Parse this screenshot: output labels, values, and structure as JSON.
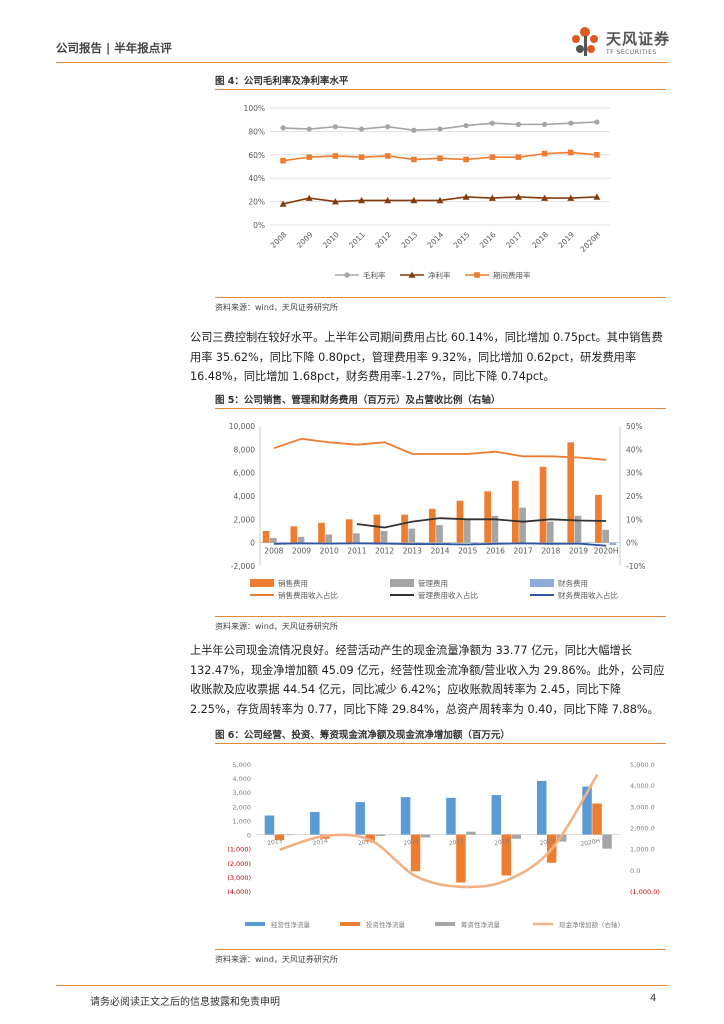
{
  "header": {
    "left": "公司报告 | 半年报点评"
  },
  "logo": {
    "cn": "天风证券",
    "en": "TF SECURITIES",
    "brand_color": "#e05a1f"
  },
  "colors": {
    "accent": "#e58a3c",
    "orange": "#ed7d31",
    "gray": "#a5a5a5",
    "blue": "#5b9bd5",
    "brown": "#843c0c",
    "dark": "#333333",
    "navy": "#2f55a4"
  },
  "fig4": {
    "title": "图 4：公司毛利率及净利率水平",
    "source": "资料来源：wind，天风证券研究所"
  },
  "para1": "公司三费控制在较好水平。上半年公司期间费用占比 60.14%，同比增加 0.75pct。其中销售费用率 35.62%，同比下降 0.80pct，管理费用率 9.32%，同比增加 0.62pct，研发费用率 16.48%，同比增加 1.68pct，财务费用率-1.27%，同比下降 0.74pct。",
  "fig5": {
    "title": "图 5：公司销售、管理和财务费用（百万元）及占营收比例（右轴）",
    "source": "资料来源：wind，天风证券研究所"
  },
  "para2": "上半年公司现金流情况良好。经营活动产生的现金流量净额为 33.77 亿元，同比大幅增长 132.47%，现金净增加额 45.09 亿元，经营性现金流净额/营业收入为 29.86%。此外，公司应收账款及应收票据 44.54 亿元，同比减少 6.42%；应收账款周转率为 2.45，同比下降 2.25%，存货周转率为 0.77，同比下降 29.84%，总资产周转率为 0.40，同比下降 7.88%。",
  "fig6": {
    "title": "图 6：公司经营、投资、筹资现金流净额及现金流净增加额（百万元）",
    "source": "资料来源：wind，天风证券研究所"
  },
  "footer": {
    "disclaimer": "请务必阅读正文之后的信息披露和免责申明",
    "page": "4"
  },
  "chart_data": [
    {
      "id": "fig4",
      "type": "line",
      "categories": [
        "2008",
        "2009",
        "2010",
        "2011",
        "2012",
        "2013",
        "2014",
        "2015",
        "2016",
        "2017",
        "2018",
        "2019",
        "2020H"
      ],
      "ylim": [
        0,
        100
      ],
      "yticks": [
        "0%",
        "20%",
        "40%",
        "60%",
        "80%",
        "100%"
      ],
      "series": [
        {
          "name": "毛利率",
          "marker": "circle",
          "color": "#a5a5a5",
          "values": [
            83,
            82,
            84,
            82,
            84,
            81,
            82,
            85,
            87,
            86,
            86,
            87,
            88
          ]
        },
        {
          "name": "净利率",
          "marker": "triangle",
          "color": "#843c0c",
          "values": [
            18,
            23,
            20,
            21,
            21,
            21,
            21,
            24,
            23,
            24,
            23,
            23,
            24
          ]
        },
        {
          "name": "期间费用率",
          "marker": "square",
          "color": "#ed7d31",
          "values": [
            55,
            58,
            59,
            58,
            59,
            56,
            57,
            56,
            58,
            58,
            61,
            62,
            60
          ]
        }
      ]
    },
    {
      "id": "fig5",
      "type": "bar",
      "categories": [
        "2008",
        "2009",
        "2010",
        "2011",
        "2012",
        "2013",
        "2014",
        "2015",
        "2016",
        "2017",
        "2018",
        "2019",
        "2020H"
      ],
      "ylim": [
        -2000,
        10000
      ],
      "yticks": [
        "-2,000",
        "0",
        "2,000",
        "4,000",
        "6,000",
        "8,000",
        "10,000"
      ],
      "y2lim": [
        -10,
        50
      ],
      "y2ticks": [
        "-10%",
        "0%",
        "10%",
        "20%",
        "30%",
        "40%",
        "50%"
      ],
      "bar_series": [
        {
          "name": "销售费用",
          "color": "#ed7d31",
          "values": [
            1000,
            1400,
            1700,
            2000,
            2400,
            2400,
            2900,
            3600,
            4400,
            5300,
            6500,
            8600,
            4100
          ]
        },
        {
          "name": "管理费用",
          "color": "#a5a5a5",
          "values": [
            400,
            500,
            700,
            800,
            1000,
            1200,
            1500,
            2000,
            2300,
            3000,
            1800,
            2300,
            1100
          ]
        },
        {
          "name": "财务费用",
          "color": "#8faadc",
          "values": [
            0,
            -50,
            -30,
            -20,
            -50,
            -80,
            -100,
            -150,
            -100,
            -80,
            -120,
            -100,
            -200
          ]
        }
      ],
      "line_series": [
        {
          "name": "销售费用收入占比",
          "color": "#ed7d31",
          "values": [
            40.5,
            44.5,
            43,
            42,
            43,
            38,
            38,
            38,
            39,
            37,
            37,
            36.5,
            35.5
          ]
        },
        {
          "name": "管理费用收入占比",
          "color": "#333333",
          "values": [
            null,
            null,
            null,
            8,
            6.5,
            9,
            10.5,
            10,
            10,
            9,
            10,
            9.5,
            9.3
          ]
        },
        {
          "name": "财务费用收入占比",
          "color": "#2f55a4",
          "values": [
            -0.5,
            -0.3,
            -0.4,
            -0.3,
            -0.4,
            -0.6,
            -0.6,
            -0.8,
            -0.5,
            -0.3,
            -0.5,
            -0.4,
            -1.3
          ]
        }
      ]
    },
    {
      "id": "fig6",
      "type": "bar",
      "categories": [
        "2013",
        "2014",
        "2015",
        "2016",
        "2017",
        "2018",
        "2019",
        "2020H"
      ],
      "ylim": [
        -4000,
        5000
      ],
      "yticks": [
        "(4,000)",
        "(3,000)",
        "(2,000)",
        "(1,000)",
        "0",
        "1,000",
        "2,000",
        "3,000",
        "4,000",
        "5,000"
      ],
      "y2lim": [
        -1000,
        5000
      ],
      "y2ticks": [
        "(1,000.0)",
        "0.0",
        "1,000.0",
        "2,000.0",
        "3,000.0",
        "4,000.0",
        "5,000.0"
      ],
      "bar_series": [
        {
          "name": "经营性净流量",
          "color": "#5b9bd5",
          "values": [
            1350,
            1600,
            2300,
            2650,
            2600,
            2800,
            3800,
            3400
          ]
        },
        {
          "name": "投资性净流量",
          "color": "#ed7d31",
          "values": [
            -400,
            -300,
            -500,
            -2600,
            -3400,
            -2900,
            -2000,
            2200
          ]
        },
        {
          "name": "筹资性净流量",
          "color": "#a5a5a5",
          "values": [
            0,
            -100,
            -100,
            -200,
            200,
            -300,
            -500,
            -1000
          ]
        }
      ],
      "line_series": [
        {
          "name": "现金净增加额（右轴）",
          "color": "#f4b183",
          "values": [
            950,
            1600,
            1400,
            -300,
            -800,
            -500,
            1000,
            4500
          ]
        }
      ]
    }
  ]
}
